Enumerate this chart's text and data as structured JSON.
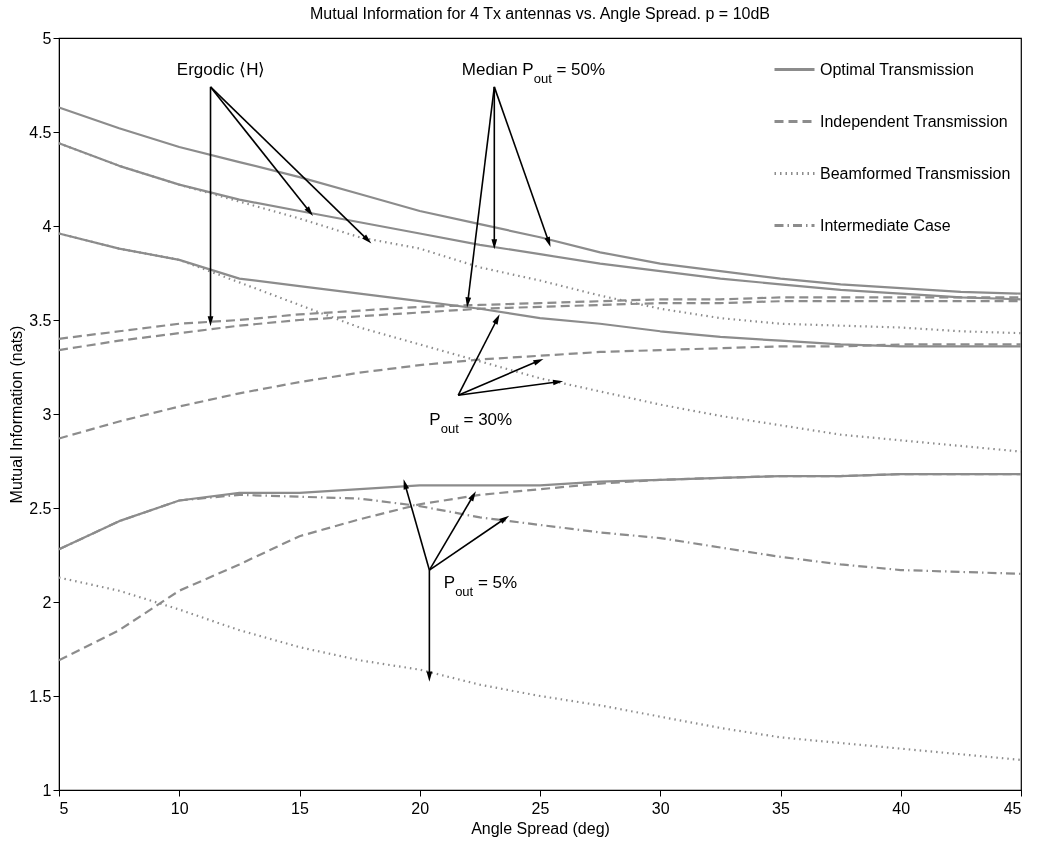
{
  "chart_data": {
    "type": "line",
    "title": "Mutual Information for 4 Tx antennas vs. Angle Spread.    p = 10dB",
    "xlabel": "Angle Spread (deg)",
    "ylabel": "Mutual Information (nats)",
    "x": [
      5,
      7.5,
      10,
      12.5,
      15,
      17.5,
      20,
      22.5,
      25,
      27.5,
      30,
      32.5,
      35,
      37.5,
      40,
      42.5,
      45
    ],
    "xlim": [
      5,
      45
    ],
    "xticks": [
      5,
      10,
      15,
      20,
      25,
      30,
      35,
      40,
      45
    ],
    "ylim": [
      1,
      5
    ],
    "yticks": [
      1,
      1.5,
      2,
      2.5,
      3,
      3.5,
      4,
      4.5,
      5
    ],
    "grid": false,
    "legend": "top right",
    "series": [
      {
        "name": "Optimal Transmission",
        "color": "#8c8c8c",
        "line_style": "solid",
        "values": [
          4.44,
          4.32,
          4.22,
          4.14,
          4.08,
          4.02,
          3.96,
          3.9,
          3.85,
          3.8,
          3.76,
          3.72,
          3.69,
          3.66,
          3.64,
          3.62,
          3.61
        ]
      },
      {
        "name": "Independent Transmission",
        "color": "#8c8c8c",
        "line_style": "dashed",
        "values": [
          3.4,
          3.44,
          3.48,
          3.5,
          3.53,
          3.55,
          3.57,
          3.58,
          3.59,
          3.6,
          3.61,
          3.61,
          3.62,
          3.62,
          3.62,
          3.62,
          3.62
        ]
      },
      {
        "name": "Beamformed Transmission",
        "color": "#8c8c8c",
        "line_style": "dotted",
        "values": [
          4.44,
          4.32,
          4.22,
          4.13,
          4.04,
          3.94,
          3.88,
          3.78,
          3.71,
          3.63,
          3.56,
          3.51,
          3.48,
          3.47,
          3.46,
          3.44,
          3.43
        ]
      },
      {
        "name": "Intermediate Case",
        "color": "#8c8c8c",
        "line_style": "dashdot",
        "values": [
          2.28,
          2.43,
          2.54,
          2.57,
          2.56,
          2.55,
          2.51,
          2.45,
          2.41,
          2.37,
          2.34,
          2.29,
          2.24,
          2.2,
          2.17,
          2.16,
          2.15
        ]
      },
      {
        "color": "#8c8c8c",
        "line_style": "solid",
        "values": [
          4.63,
          4.52,
          4.42,
          4.34,
          4.26,
          4.17,
          4.08,
          4.01,
          3.94,
          3.86,
          3.8,
          3.76,
          3.72,
          3.69,
          3.67,
          3.65,
          3.64
        ]
      },
      {
        "color": "#8c8c8c",
        "line_style": "dashed",
        "values": [
          3.34,
          3.39,
          3.43,
          3.47,
          3.5,
          3.52,
          3.54,
          3.56,
          3.57,
          3.58,
          3.59,
          3.59,
          3.6,
          3.6,
          3.6,
          3.6,
          3.6
        ]
      },
      {
        "color": "#8c8c8c",
        "line_style": "solid",
        "values": [
          3.96,
          3.88,
          3.82,
          3.72,
          3.68,
          3.64,
          3.6,
          3.56,
          3.51,
          3.48,
          3.44,
          3.41,
          3.39,
          3.37,
          3.36,
          3.36,
          3.36
        ]
      },
      {
        "color": "#8c8c8c",
        "line_style": "dotted",
        "values": [
          3.96,
          3.88,
          3.82,
          3.7,
          3.58,
          3.46,
          3.37,
          3.28,
          3.19,
          3.12,
          3.05,
          2.99,
          2.94,
          2.89,
          2.86,
          2.83,
          2.8
        ]
      },
      {
        "color": "#8c8c8c",
        "line_style": "dashed",
        "values": [
          2.87,
          2.96,
          3.04,
          3.11,
          3.17,
          3.22,
          3.26,
          3.29,
          3.31,
          3.33,
          3.34,
          3.35,
          3.36,
          3.36,
          3.37,
          3.37,
          3.37
        ]
      },
      {
        "color": "#8c8c8c",
        "line_style": "solid",
        "values": [
          2.28,
          2.43,
          2.54,
          2.58,
          2.58,
          2.6,
          2.62,
          2.62,
          2.62,
          2.64,
          2.65,
          2.66,
          2.67,
          2.67,
          2.68,
          2.68,
          2.68
        ]
      },
      {
        "color": "#8c8c8c",
        "line_style": "dashed",
        "values": [
          1.69,
          1.85,
          2.06,
          2.2,
          2.35,
          2.44,
          2.52,
          2.57,
          2.6,
          2.63,
          2.65,
          2.66,
          2.67,
          2.67,
          2.68,
          2.68,
          2.68
        ]
      },
      {
        "color": "#8c8c8c",
        "line_style": "dotted",
        "values": [
          2.13,
          2.06,
          1.96,
          1.85,
          1.76,
          1.69,
          1.64,
          1.56,
          1.5,
          1.45,
          1.39,
          1.33,
          1.28,
          1.25,
          1.22,
          1.19,
          1.16
        ]
      }
    ],
    "annotations": [
      {
        "text": "Ergodic ⟨H⟩",
        "x": 11.3,
        "y": 3.5
      },
      {
        "text": "Median P$_{out}$ = 50%",
        "x": 22.0,
        "y": 3.6
      },
      {
        "text": "P$_{out}$ = 30%",
        "x": 23.2,
        "y": 3.5
      },
      {
        "text": "P$_{out}$ = 5%",
        "x": 20.4,
        "y": 1.61
      }
    ]
  }
}
